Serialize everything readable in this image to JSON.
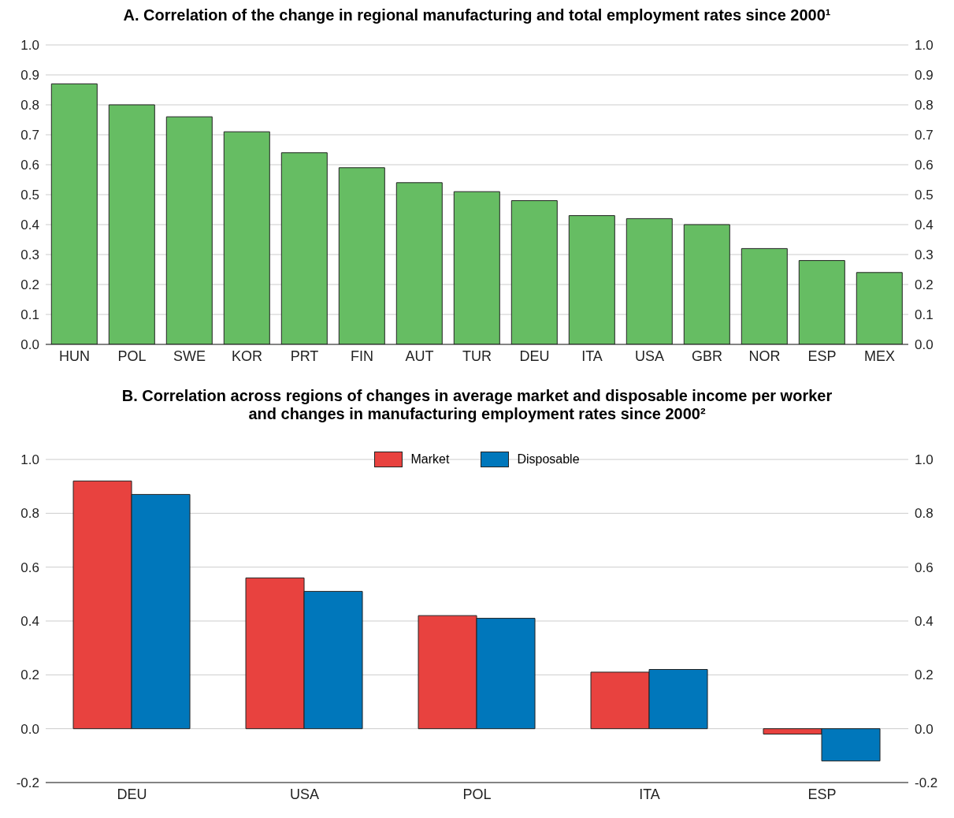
{
  "chart_data": [
    {
      "type": "bar",
      "title": "A. Correlation of the change in regional manufacturing and total employment rates since 2000¹",
      "categories": [
        "HUN",
        "POL",
        "SWE",
        "KOR",
        "PRT",
        "FIN",
        "AUT",
        "TUR",
        "DEU",
        "ITA",
        "USA",
        "GBR",
        "NOR",
        "ESP",
        "MEX"
      ],
      "values": [
        0.87,
        0.8,
        0.76,
        0.71,
        0.64,
        0.59,
        0.54,
        0.51,
        0.48,
        0.43,
        0.42,
        0.4,
        0.32,
        0.28,
        0.24
      ],
      "color": "#66bd63",
      "ylim": [
        0,
        1
      ],
      "yticks": [
        {
          "value": 0,
          "label": "0.0"
        },
        {
          "value": 0.1,
          "label": "0.1"
        },
        {
          "value": 0.2,
          "label": "0.2"
        },
        {
          "value": 0.3,
          "label": "0.3"
        },
        {
          "value": 0.4,
          "label": "0.4"
        },
        {
          "value": 0.5,
          "label": "0.5"
        },
        {
          "value": 0.6,
          "label": "0.6"
        },
        {
          "value": 0.7,
          "label": "0.7"
        },
        {
          "value": 0.8,
          "label": "0.8"
        },
        {
          "value": 0.9,
          "label": "0.9"
        },
        {
          "value": 1,
          "label": "1.0"
        }
      ],
      "y2lim": [
        0,
        1
      ],
      "y2ticks": [
        {
          "value": 0,
          "label": "0.0"
        },
        {
          "value": 0.1,
          "label": "0.1"
        },
        {
          "value": 0.2,
          "label": "0.2"
        },
        {
          "value": 0.3,
          "label": "0.3"
        },
        {
          "value": 0.4,
          "label": "0.4"
        },
        {
          "value": 0.5,
          "label": "0.5"
        },
        {
          "value": 0.6,
          "label": "0.6"
        },
        {
          "value": 0.7,
          "label": "0.7"
        },
        {
          "value": 0.8,
          "label": "0.8"
        },
        {
          "value": 0.9,
          "label": "0.9"
        },
        {
          "value": 1,
          "label": "1.0"
        }
      ],
      "grid": "y"
    },
    {
      "type": "bar",
      "title": "B. Correlation across regions of changes in average market and disposable income per worker\nand changes in manufacturing employment rates since 2000²",
      "categories": [
        "DEU",
        "USA",
        "POL",
        "ITA",
        "ESP"
      ],
      "series": [
        {
          "name": "Market",
          "color": "#e8423f",
          "values": [
            0.92,
            0.56,
            0.42,
            0.21,
            -0.02
          ]
        },
        {
          "name": "Disposable",
          "color": "#0077bb",
          "values": [
            0.87,
            0.51,
            0.41,
            0.22,
            -0.12
          ]
        }
      ],
      "ylim": [
        -0.2,
        1
      ],
      "yticks": [
        {
          "value": -0.2,
          "label": "-0.2"
        },
        {
          "value": 0,
          "label": "0.0"
        },
        {
          "value": 0.2,
          "label": "0.2"
        },
        {
          "value": 0.4,
          "label": "0.4"
        },
        {
          "value": 0.6,
          "label": "0.6"
        },
        {
          "value": 0.8,
          "label": "0.8"
        },
        {
          "value": 1,
          "label": "1.0"
        }
      ],
      "y2lim": [
        -0.2,
        1
      ],
      "y2ticks": [
        {
          "value": -0.2,
          "label": "-0.2"
        },
        {
          "value": 0,
          "label": "0.0"
        },
        {
          "value": 0.2,
          "label": "0.2"
        },
        {
          "value": 0.4,
          "label": "0.4"
        },
        {
          "value": 0.6,
          "label": "0.6"
        },
        {
          "value": 0.8,
          "label": "0.8"
        },
        {
          "value": 1,
          "label": "1.0"
        }
      ],
      "grid": "y",
      "legend": "top"
    }
  ]
}
